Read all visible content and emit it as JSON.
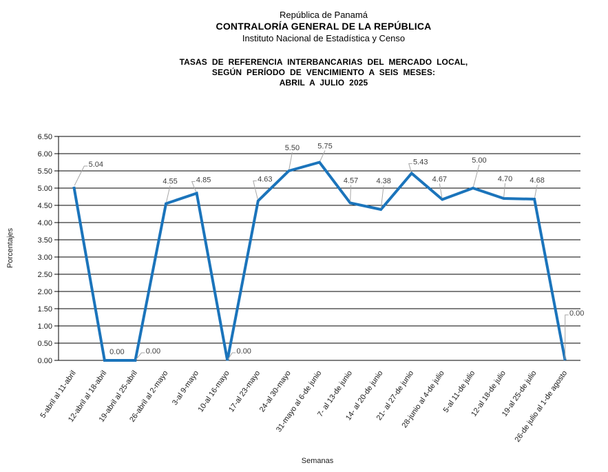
{
  "header": {
    "line1": "República de Panamá",
    "line2": "CONTRALORÍA GENERAL DE LA REPÚBLICA",
    "line3": "Instituto Nacional de Estadística y Censo"
  },
  "title": {
    "line1": "TASAS DE REFERENCIA INTERBANCARIAS DEL MERCADO LOCAL,",
    "line2": "SEGÚN PERÍODO DE VENCIMIENTO A SEIS MESES:",
    "line3": "ABRIL A JULIO 2025"
  },
  "chart_data": {
    "type": "line",
    "categories": [
      "5-abril al 11-abril",
      "12-abril al 18-abril",
      "19-abril al 25-abril",
      "26-abril al 2-mayo",
      "3-al 9-mayo",
      "10-al 16-mayo",
      "17-al 23-mayo",
      "24-al 30-mayo",
      "31-mayo al 6-de junio",
      "7- al 13-de junio",
      "14- al 20-de junio",
      "21- al 27-de junio",
      "28-junio al 4-de julio",
      "5-al 11-de julio",
      "12-al 18-de julio",
      "19-al 25-de julio",
      "26-de julio al 1-de agosto"
    ],
    "values": [
      5.04,
      0.0,
      0.0,
      4.55,
      4.85,
      0.0,
      4.63,
      5.5,
      5.75,
      4.57,
      4.38,
      5.43,
      4.67,
      5.0,
      4.7,
      4.68,
      0.0
    ],
    "data_labels": [
      "5.04",
      "0.00",
      "0.00",
      "4.55",
      "4.85",
      "0.00",
      "4.63",
      "5.50",
      "5.75",
      "4.57",
      "4.38",
      "5.43",
      "4.67",
      "5.00",
      "4.70",
      "4.68",
      "0.00"
    ],
    "ytick_labels": [
      "0.00",
      "0.50",
      "1.00",
      "1.50",
      "2.00",
      "2.50",
      "3.00",
      "3.50",
      "4.00",
      "4.50",
      "5.00",
      "5.50",
      "6.00",
      "6.50"
    ],
    "xlabel": "Semanas",
    "ylabel": "Porcentajes",
    "ylim": [
      0,
      6.5
    ],
    "ytick_step": 0.5,
    "grid": "horizontal",
    "legend": "none",
    "line_color": "#1B74BB",
    "grid_color": "#000000",
    "data_label_color": "#404040",
    "leader_color": "#A6A6A6"
  }
}
